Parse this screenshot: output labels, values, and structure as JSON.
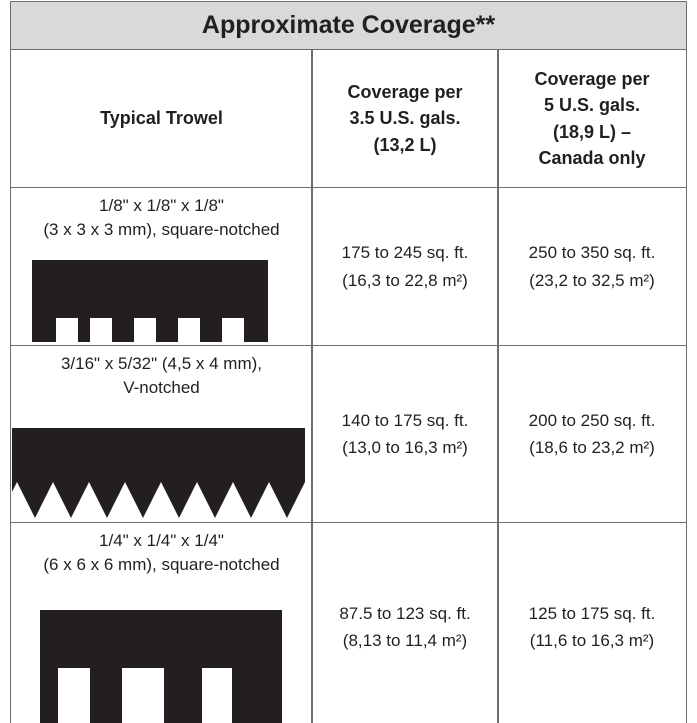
{
  "table": {
    "title": "Approximate Coverage**",
    "headers": [
      "Typical Trowel",
      "Coverage per\n3.5 U.S. gals.\n(13,2 L)",
      "Coverage per\n5 U.S. gals.\n(18,9 L) –\nCanada only"
    ],
    "rows": [
      [
        "1/8\" x 1/8\" x 1/8\"\n(3 x 3 x 3 mm), square-notched",
        "175 to 245 sq. ft.\n(16,3 to 22,8 m²)",
        "250 to 350 sq. ft.\n(23,2 to 32,5 m²)"
      ],
      [
        "3/16\" x 5/32\" (4,5 x 4 mm),\nV-notched",
        "140 to 175 sq. ft.\n(13,0 to 16,3 m²)",
        "200 to 250 sq. ft.\n(18,6 to 23,2 m²)"
      ],
      [
        "1/4\" x 1/4\" x 1/4\"\n(6 x 6 x 6 mm), square-notched",
        "87.5 to 123 sq. ft.\n(8,13 to 11,4 m²)",
        "125 to 175 sq. ft.\n(11,6 to 16,3 m²)"
      ]
    ]
  }
}
